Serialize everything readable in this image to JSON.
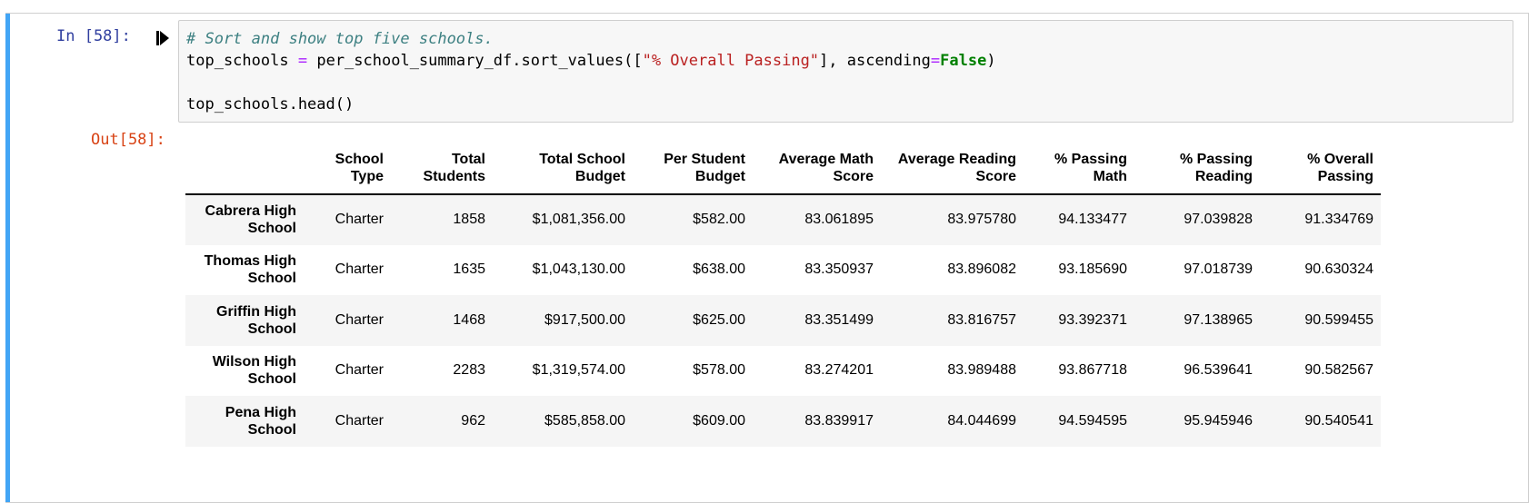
{
  "input_prompt": "In [58]:",
  "output_prompt": "Out[58]:",
  "code": {
    "line1_comment": "# Sort and show top five schools.",
    "line2_var": "top_schools",
    "line2_eq": "=",
    "line2_call": "per_school_summary_df.sort_values([",
    "line2_str": "\"% Overall Passing\"",
    "line2_mid": "], ascending",
    "line2_eq2": "=",
    "line2_kw": "False",
    "line2_end": ")",
    "line4": "top_schools.head()"
  },
  "table": {
    "columns": [
      {
        "line1": "School",
        "line2": "Type"
      },
      {
        "line1": "Total",
        "line2": "Students"
      },
      {
        "line1": "Total School",
        "line2": "Budget"
      },
      {
        "line1": "Per Student",
        "line2": "Budget"
      },
      {
        "line1": "Average Math",
        "line2": "Score"
      },
      {
        "line1": "Average Reading",
        "line2": "Score"
      },
      {
        "line1": "% Passing",
        "line2": "Math"
      },
      {
        "line1": "% Passing",
        "line2": "Reading"
      },
      {
        "line1": "% Overall",
        "line2": "Passing"
      }
    ],
    "rows": [
      {
        "index1": "Cabrera High",
        "index2": "School",
        "cells": [
          "Charter",
          "1858",
          "$1,081,356.00",
          "$582.00",
          "83.061895",
          "83.975780",
          "94.133477",
          "97.039828",
          "91.334769"
        ]
      },
      {
        "index1": "Thomas High",
        "index2": "School",
        "cells": [
          "Charter",
          "1635",
          "$1,043,130.00",
          "$638.00",
          "83.350937",
          "83.896082",
          "93.185690",
          "97.018739",
          "90.630324"
        ]
      },
      {
        "index1": "Griffin High",
        "index2": "School",
        "cells": [
          "Charter",
          "1468",
          "$917,500.00",
          "$625.00",
          "83.351499",
          "83.816757",
          "93.392371",
          "97.138965",
          "90.599455"
        ]
      },
      {
        "index1": "Wilson High",
        "index2": "School",
        "cells": [
          "Charter",
          "2283",
          "$1,319,574.00",
          "$578.00",
          "83.274201",
          "83.989488",
          "93.867718",
          "96.539641",
          "90.582567"
        ]
      },
      {
        "index1": "Pena High",
        "index2": "School",
        "cells": [
          "Charter",
          "962",
          "$585,858.00",
          "$609.00",
          "83.839917",
          "84.044699",
          "94.594595",
          "95.945946",
          "90.540541"
        ]
      }
    ]
  },
  "colors": {
    "cell_bar": "#42a5f5",
    "in_prompt": "#303f9f",
    "out_prompt": "#d84315"
  },
  "icons": {
    "run": "run-cell-icon"
  }
}
